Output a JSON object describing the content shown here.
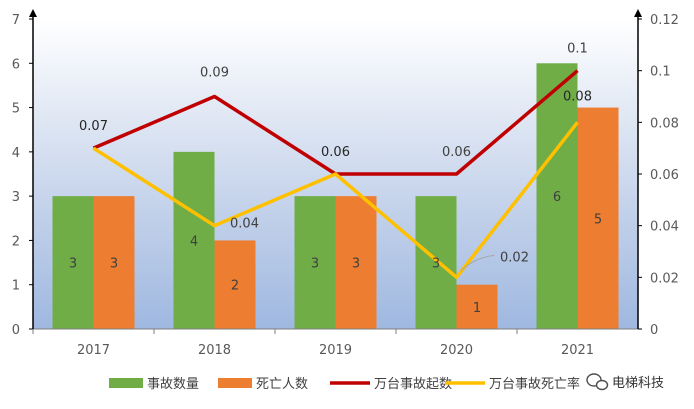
{
  "chart_data": {
    "type": "bar",
    "categories": [
      "2017",
      "2018",
      "2019",
      "2020",
      "2021"
    ],
    "series": [
      {
        "name": "事故数量",
        "type": "bar",
        "axis": "left",
        "color": "#70AD47",
        "values": [
          3,
          4,
          3,
          3,
          6
        ],
        "labels": [
          "3",
          "4",
          "3",
          "3",
          "6"
        ]
      },
      {
        "name": "死亡人数",
        "type": "bar",
        "axis": "left",
        "color": "#ED7D31",
        "values": [
          3,
          2,
          3,
          1,
          5
        ],
        "labels": [
          "3",
          "2",
          "3",
          "1",
          "5"
        ]
      },
      {
        "name": "万台事故起数",
        "type": "line",
        "axis": "right",
        "color": "#C00000",
        "values": [
          0.07,
          0.09,
          0.06,
          0.06,
          0.1
        ],
        "labels": [
          "0.07",
          "0.09",
          "0.06",
          "0.06",
          "0.1"
        ]
      },
      {
        "name": "万台事故死亡率",
        "type": "line",
        "axis": "right",
        "color": "#FFC000",
        "values": [
          0.07,
          0.04,
          0.06,
          0.02,
          0.08
        ],
        "labels": [
          "",
          "0.04",
          "",
          "0.02",
          "0.08"
        ]
      }
    ],
    "y_left": {
      "min": 0,
      "max": 7,
      "ticks": [
        "0",
        "1",
        "2",
        "3",
        "4",
        "5",
        "6",
        "7"
      ]
    },
    "y_right": {
      "min": 0,
      "max": 0.12,
      "ticks": [
        "0",
        "0.02",
        "0.04",
        "0.06",
        "0.08",
        "0.1",
        "0.12"
      ]
    },
    "legend_position": "bottom",
    "grid": false
  },
  "legend_labels": [
    "事故数量",
    "死亡人数",
    "万台事故起数",
    "万台事故死亡率"
  ],
  "watermark": {
    "icon": "wechat-icon",
    "text": "电梯科技"
  }
}
